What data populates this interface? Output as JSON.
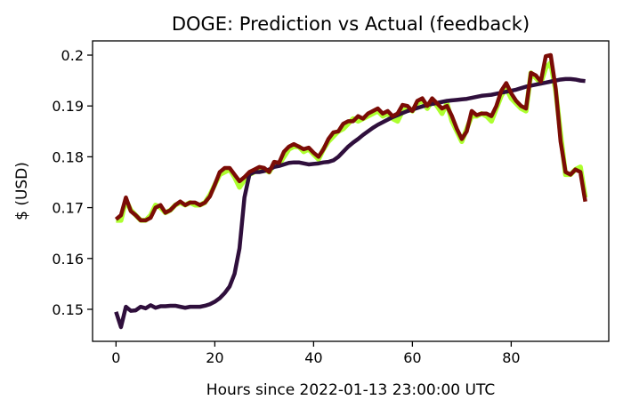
{
  "chart_data": {
    "type": "line",
    "title": "DOGE: Prediction vs Actual (feedback)",
    "xlabel": "Hours since 2022-01-13 23:00:00 UTC",
    "ylabel": "$ (USD)",
    "xlim": [
      -4.75,
      99.75
    ],
    "ylim": [
      0.1437,
      0.2028
    ],
    "xticks": [
      0,
      20,
      40,
      60,
      80
    ],
    "xtick_labels": [
      "0",
      "20",
      "40",
      "60",
      "80"
    ],
    "yticks": [
      0.15,
      0.16,
      0.17,
      0.18,
      0.19,
      0.2
    ],
    "ytick_labels": [
      "0.15",
      "0.16",
      "0.17",
      "0.18",
      "0.19",
      "0.2"
    ],
    "grid": false,
    "legend": "none",
    "x": [
      0,
      1,
      2,
      3,
      4,
      5,
      6,
      7,
      8,
      9,
      10,
      11,
      12,
      13,
      14,
      15,
      16,
      17,
      18,
      19,
      20,
      21,
      22,
      23,
      24,
      25,
      26,
      27,
      28,
      29,
      30,
      31,
      32,
      33,
      34,
      35,
      36,
      37,
      38,
      39,
      40,
      41,
      42,
      43,
      44,
      45,
      46,
      47,
      48,
      49,
      50,
      51,
      52,
      53,
      54,
      55,
      56,
      57,
      58,
      59,
      60,
      61,
      62,
      63,
      64,
      65,
      66,
      67,
      68,
      69,
      70,
      71,
      72,
      73,
      74,
      75,
      76,
      77,
      78,
      79,
      80,
      81,
      82,
      83,
      84,
      85,
      86,
      87,
      88,
      89,
      90,
      91,
      92,
      93,
      94,
      95
    ],
    "series": [
      {
        "color": "#adff2f",
        "values": [
          0.1675,
          0.1675,
          0.1715,
          0.1695,
          0.1685,
          0.1675,
          0.1675,
          0.1685,
          0.1705,
          0.17,
          0.169,
          0.1695,
          0.1705,
          0.171,
          0.1705,
          0.171,
          0.1705,
          0.1705,
          0.171,
          0.1725,
          0.1745,
          0.1765,
          0.177,
          0.1775,
          0.176,
          0.174,
          0.1755,
          0.1765,
          0.177,
          0.1775,
          0.1775,
          0.177,
          0.1785,
          0.1785,
          0.18,
          0.1815,
          0.182,
          0.182,
          0.181,
          0.1815,
          0.1805,
          0.1795,
          0.1815,
          0.183,
          0.184,
          0.185,
          0.1855,
          0.1865,
          0.1875,
          0.187,
          0.1875,
          0.188,
          0.1885,
          0.189,
          0.188,
          0.1885,
          0.1875,
          0.187,
          0.189,
          0.1895,
          0.189,
          0.1905,
          0.191,
          0.1895,
          0.191,
          0.19,
          0.1885,
          0.1905,
          0.187,
          0.185,
          0.183,
          0.1855,
          0.188,
          0.188,
          0.1885,
          0.188,
          0.187,
          0.1895,
          0.192,
          0.1935,
          0.1915,
          0.1905,
          0.1895,
          0.189,
          0.1965,
          0.1955,
          0.1945,
          0.1975,
          0.1985,
          0.193,
          0.1845,
          0.1765,
          0.1765,
          0.1775,
          0.178,
          0.172
        ]
      },
      {
        "color": "#2f0f3c",
        "values": [
          0.1495,
          0.1465,
          0.1505,
          0.1497,
          0.1498,
          0.1505,
          0.1502,
          0.1508,
          0.1503,
          0.1506,
          0.1506,
          0.1507,
          0.1507,
          0.1505,
          0.1503,
          0.1505,
          0.1505,
          0.1505,
          0.1507,
          0.151,
          0.1515,
          0.1522,
          0.1532,
          0.1545,
          0.157,
          0.162,
          0.172,
          0.1765,
          0.177,
          0.177,
          0.1772,
          0.1775,
          0.178,
          0.1782,
          0.1785,
          0.1788,
          0.1789,
          0.1789,
          0.1787,
          0.1785,
          0.1786,
          0.1787,
          0.1789,
          0.179,
          0.1793,
          0.18,
          0.181,
          0.182,
          0.1828,
          0.1835,
          0.1843,
          0.185,
          0.1857,
          0.1863,
          0.1868,
          0.1873,
          0.1878,
          0.1882,
          0.1886,
          0.189,
          0.1893,
          0.1896,
          0.1899,
          0.1902,
          0.1904,
          0.1906,
          0.1908,
          0.191,
          0.1911,
          0.1912,
          0.1913,
          0.1914,
          0.1916,
          0.1918,
          0.192,
          0.1921,
          0.1922,
          0.1924,
          0.1926,
          0.1928,
          0.193,
          0.1932,
          0.1935,
          0.1938,
          0.194,
          0.1942,
          0.1944,
          0.1946,
          0.1948,
          0.195,
          0.1952,
          0.1953,
          0.1953,
          0.1952,
          0.195,
          0.1949
        ]
      },
      {
        "color": "#7b0c06",
        "values": [
          0.1677,
          0.1685,
          0.172,
          0.1693,
          0.1685,
          0.1675,
          0.1675,
          0.168,
          0.17,
          0.1705,
          0.169,
          0.1695,
          0.1705,
          0.1712,
          0.1705,
          0.171,
          0.171,
          0.1705,
          0.171,
          0.1722,
          0.1745,
          0.177,
          0.1778,
          0.1778,
          0.1765,
          0.1752,
          0.176,
          0.177,
          0.1775,
          0.178,
          0.1778,
          0.177,
          0.179,
          0.1788,
          0.181,
          0.182,
          0.1825,
          0.182,
          0.1815,
          0.1818,
          0.1808,
          0.18,
          0.1815,
          0.1835,
          0.1848,
          0.185,
          0.1865,
          0.187,
          0.187,
          0.188,
          0.1875,
          0.1885,
          0.189,
          0.1895,
          0.1885,
          0.189,
          0.188,
          0.1885,
          0.1902,
          0.19,
          0.189,
          0.191,
          0.1915,
          0.19,
          0.1915,
          0.1905,
          0.1895,
          0.19,
          0.188,
          0.1855,
          0.1835,
          0.185,
          0.189,
          0.1882,
          0.1885,
          0.1885,
          0.188,
          0.19,
          0.193,
          0.1945,
          0.1925,
          0.191,
          0.19,
          0.1895,
          0.1965,
          0.196,
          0.1948,
          0.1998,
          0.2,
          0.1935,
          0.183,
          0.177,
          0.1765,
          0.1775,
          0.177,
          0.1712
        ]
      }
    ]
  }
}
